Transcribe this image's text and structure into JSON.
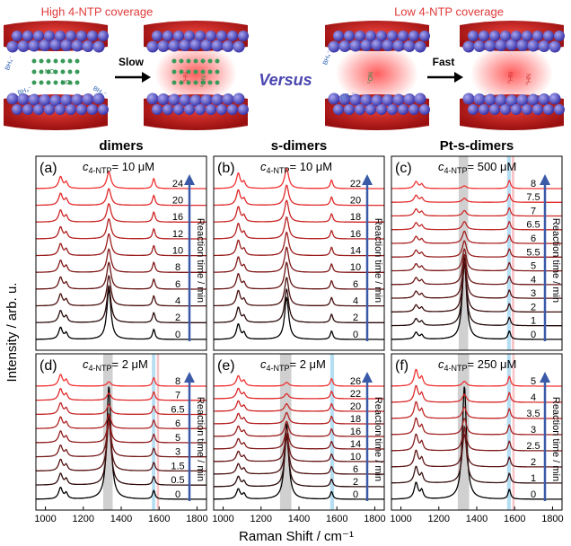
{
  "figure": {
    "high_title": "High 4-NTP coverage",
    "low_title": "Low 4-NTP coverage",
    "slow": "Slow",
    "fast": "Fast",
    "versus": "Versus",
    "molecule_labels": {
      "borohydride": "BH₄⁻",
      "nitro": "NO₂",
      "amine": "NH₂"
    },
    "ylabel": "Intensity / arb. u.",
    "xlabel": "Raman Shift / cm⁻¹",
    "arrow_label": "Reaction time / min"
  },
  "chart_data": [
    {
      "type": "spectra",
      "title": "dimers",
      "panel_label": "(a)",
      "conc_symbol": "c",
      "conc_subscript": "4-NTP",
      "conc_value": "= 10 μM",
      "xlim": [
        950,
        1850
      ],
      "x": [
        1080,
        1110,
        1335,
        1572
      ],
      "peak_widths": [
        12,
        9,
        13,
        8
      ],
      "bands": [],
      "series": [
        {
          "name": "0",
          "color": "#000000",
          "values": [
            0.7,
            0.35,
            3.0,
            0.6
          ]
        },
        {
          "name": "2",
          "color": "#2a0a0a",
          "values": [
            0.7,
            0.35,
            2.2,
            0.6
          ]
        },
        {
          "name": "4",
          "color": "#4a1010",
          "values": [
            0.7,
            0.35,
            1.8,
            0.6
          ]
        },
        {
          "name": "6",
          "color": "#661414",
          "values": [
            0.7,
            0.35,
            1.6,
            0.6
          ]
        },
        {
          "name": "8",
          "color": "#801818",
          "values": [
            0.7,
            0.35,
            1.4,
            0.6
          ]
        },
        {
          "name": "10",
          "color": "#9a1c1c",
          "values": [
            0.7,
            0.35,
            1.3,
            0.6
          ]
        },
        {
          "name": "12",
          "color": "#b42020",
          "values": [
            0.7,
            0.35,
            1.2,
            0.6
          ]
        },
        {
          "name": "16",
          "color": "#cc2424",
          "values": [
            0.7,
            0.35,
            1.1,
            0.6
          ]
        },
        {
          "name": "20",
          "color": "#e02828",
          "values": [
            0.7,
            0.35,
            1.0,
            0.6
          ]
        },
        {
          "name": "24",
          "color": "#f03030",
          "values": [
            0.7,
            0.35,
            1.0,
            0.6
          ]
        }
      ]
    },
    {
      "type": "spectra",
      "title": "s-dimers",
      "panel_label": "(b)",
      "conc_symbol": "c",
      "conc_subscript": "4-NTP",
      "conc_value": "= 10 μM",
      "xlim": [
        950,
        1850
      ],
      "x": [
        1080,
        1110,
        1335,
        1572
      ],
      "peak_widths": [
        12,
        9,
        13,
        8
      ],
      "bands": [],
      "series": [
        {
          "name": "0",
          "color": "#000000",
          "values": [
            0.9,
            0.35,
            2.5,
            0.5
          ]
        },
        {
          "name": "2",
          "color": "#2a0a0a",
          "values": [
            0.9,
            0.35,
            2.0,
            0.5
          ]
        },
        {
          "name": "4",
          "color": "#4a1010",
          "values": [
            0.9,
            0.35,
            1.7,
            0.5
          ]
        },
        {
          "name": "6",
          "color": "#661414",
          "values": [
            0.9,
            0.35,
            1.6,
            0.5
          ]
        },
        {
          "name": "10",
          "color": "#801818",
          "values": [
            0.9,
            0.35,
            1.5,
            0.5
          ]
        },
        {
          "name": "14",
          "color": "#9a1c1c",
          "values": [
            0.9,
            0.35,
            1.4,
            0.5
          ]
        },
        {
          "name": "16",
          "color": "#b42020",
          "values": [
            0.9,
            0.35,
            1.3,
            0.5
          ]
        },
        {
          "name": "18",
          "color": "#cc2424",
          "values": [
            0.9,
            0.35,
            1.3,
            0.5
          ]
        },
        {
          "name": "20",
          "color": "#e02828",
          "values": [
            0.9,
            0.35,
            1.2,
            0.5
          ]
        },
        {
          "name": "22",
          "color": "#f03030",
          "values": [
            0.9,
            0.35,
            1.2,
            0.5
          ]
        }
      ]
    },
    {
      "type": "spectra",
      "title": "Pt-s-dimers",
      "panel_label": "(c)",
      "conc_symbol": "c",
      "conc_subscript": "4-NTP",
      "conc_value": "= 500 μM",
      "xlim": [
        950,
        1850
      ],
      "x": [
        1080,
        1110,
        1335,
        1572
      ],
      "peak_widths": [
        12,
        9,
        13,
        8
      ],
      "bands": [
        {
          "xlim": [
            1305,
            1355
          ],
          "color": "#c8c8c8"
        },
        {
          "xlim": [
            1560,
            1580
          ],
          "color": "#a9d8f0"
        },
        {
          "xlim": [
            1585,
            1598
          ],
          "color": "#f6b8bc"
        }
      ],
      "series": [
        {
          "name": "0",
          "color": "#000000",
          "values": [
            0.5,
            0.3,
            6.0,
            0.6
          ]
        },
        {
          "name": "1",
          "color": "#220808",
          "values": [
            0.5,
            0.3,
            4.5,
            0.6
          ]
        },
        {
          "name": "2",
          "color": "#3c0e0e",
          "values": [
            0.5,
            0.3,
            3.5,
            0.6
          ]
        },
        {
          "name": "3",
          "color": "#541212",
          "values": [
            0.5,
            0.3,
            2.8,
            0.6
          ]
        },
        {
          "name": "4",
          "color": "#6a1616",
          "values": [
            0.5,
            0.3,
            2.2,
            0.6
          ]
        },
        {
          "name": "5",
          "color": "#801a1a",
          "values": [
            0.5,
            0.3,
            1.6,
            0.6
          ]
        },
        {
          "name": "5.5",
          "color": "#961e1e",
          "values": [
            0.5,
            0.3,
            1.2,
            0.6
          ]
        },
        {
          "name": "6",
          "color": "#aa2222",
          "values": [
            0.5,
            0.3,
            0.9,
            0.6
          ]
        },
        {
          "name": "6.5",
          "color": "#be2626",
          "values": [
            0.5,
            0.3,
            0.6,
            0.6
          ]
        },
        {
          "name": "7",
          "color": "#d02a2a",
          "values": [
            0.5,
            0.3,
            0.4,
            0.6
          ]
        },
        {
          "name": "7.5",
          "color": "#e22e2e",
          "values": [
            0.5,
            0.3,
            0.3,
            0.6
          ]
        },
        {
          "name": "8",
          "color": "#f23434",
          "values": [
            0.5,
            0.3,
            0.2,
            0.6
          ]
        }
      ]
    },
    {
      "type": "spectra",
      "panel_label": "(d)",
      "conc_symbol": "c",
      "conc_subscript": "4-NTP",
      "conc_value": "= 2 μM",
      "xlim": [
        950,
        1850
      ],
      "xticks": [
        1000,
        1200,
        1400,
        1600,
        1800
      ],
      "x": [
        1080,
        1110,
        1335,
        1572
      ],
      "peak_widths": [
        12,
        9,
        13,
        8
      ],
      "bands": [
        {
          "xlim": [
            1305,
            1355
          ],
          "color": "#c8c8c8"
        },
        {
          "xlim": [
            1562,
            1580
          ],
          "color": "#a9d8f0"
        },
        {
          "xlim": [
            1588,
            1600
          ],
          "color": "#f6b8bc"
        }
      ],
      "series": [
        {
          "name": "0",
          "color": "#000000",
          "values": [
            0.8,
            0.4,
            8.0,
            0.6
          ]
        },
        {
          "name": "0.5",
          "color": "#300c0c",
          "values": [
            0.8,
            0.4,
            5.0,
            0.6
          ]
        },
        {
          "name": "1.5",
          "color": "#541212",
          "values": [
            0.8,
            0.4,
            3.5,
            0.6
          ]
        },
        {
          "name": "3",
          "color": "#741818",
          "values": [
            0.8,
            0.4,
            2.5,
            0.6
          ]
        },
        {
          "name": "5",
          "color": "#921c1c",
          "values": [
            0.8,
            0.4,
            1.5,
            0.6
          ]
        },
        {
          "name": "6",
          "color": "#ae2222",
          "values": [
            0.8,
            0.4,
            1.0,
            0.6
          ]
        },
        {
          "name": "6.5",
          "color": "#c82626",
          "values": [
            0.8,
            0.4,
            0.7,
            0.6
          ]
        },
        {
          "name": "7",
          "color": "#e02a2a",
          "values": [
            0.8,
            0.4,
            0.5,
            0.6
          ]
        },
        {
          "name": "8",
          "color": "#f23232",
          "values": [
            0.8,
            0.4,
            0.3,
            0.6
          ]
        }
      ]
    },
    {
      "type": "spectra",
      "panel_label": "(e)",
      "conc_symbol": "c",
      "conc_subscript": "4-NTP",
      "conc_value": "= 2 μM",
      "xlim": [
        950,
        1850
      ],
      "xticks": [
        1000,
        1200,
        1400,
        1600,
        1800
      ],
      "x": [
        1080,
        1110,
        1335,
        1572
      ],
      "peak_widths": [
        12,
        9,
        13,
        8
      ],
      "bands": [
        {
          "xlim": [
            1300,
            1360
          ],
          "color": "#c8c8c8"
        },
        {
          "xlim": [
            1565,
            1585
          ],
          "color": "#a9d8f0"
        }
      ],
      "series": [
        {
          "name": "0",
          "color": "#000000",
          "values": [
            0.8,
            0.4,
            6.0,
            0.6
          ]
        },
        {
          "name": "2",
          "color": "#2a0a0a",
          "values": [
            0.8,
            0.4,
            4.0,
            0.6
          ]
        },
        {
          "name": "6",
          "color": "#4a1010",
          "values": [
            0.8,
            0.4,
            3.0,
            0.6
          ]
        },
        {
          "name": "10",
          "color": "#661414",
          "values": [
            0.8,
            0.4,
            2.2,
            0.6
          ]
        },
        {
          "name": "14",
          "color": "#801818",
          "values": [
            0.8,
            0.4,
            1.6,
            0.6
          ]
        },
        {
          "name": "16",
          "color": "#9a1c1c",
          "values": [
            0.8,
            0.4,
            1.2,
            0.6
          ]
        },
        {
          "name": "18",
          "color": "#b42020",
          "values": [
            0.8,
            0.4,
            0.9,
            0.6
          ]
        },
        {
          "name": "20",
          "color": "#cc2424",
          "values": [
            0.8,
            0.4,
            0.6,
            0.6
          ]
        },
        {
          "name": "22",
          "color": "#e02828",
          "values": [
            0.8,
            0.4,
            0.4,
            0.6
          ]
        },
        {
          "name": "26",
          "color": "#f03030",
          "values": [
            0.8,
            0.4,
            0.3,
            0.6
          ]
        }
      ]
    },
    {
      "type": "spectra",
      "panel_label": "(f)",
      "conc_symbol": "c",
      "conc_subscript": "4-NTP",
      "conc_value": "= 250 μM",
      "xlim": [
        950,
        1850
      ],
      "xticks": [
        1000,
        1200,
        1400,
        1600,
        1800
      ],
      "x": [
        1080,
        1110,
        1335,
        1572
      ],
      "peak_widths": [
        12,
        9,
        13,
        8
      ],
      "bands": [
        {
          "xlim": [
            1300,
            1360
          ],
          "color": "#c8c8c8"
        },
        {
          "xlim": [
            1560,
            1580
          ],
          "color": "#a9d8f0"
        },
        {
          "xlim": [
            1588,
            1600
          ],
          "color": "#f6b8bc"
        }
      ],
      "series": [
        {
          "name": "0",
          "color": "#000000",
          "values": [
            1.0,
            0.5,
            7.0,
            0.6
          ]
        },
        {
          "name": "1",
          "color": "#361010",
          "values": [
            1.0,
            0.5,
            3.5,
            0.6
          ]
        },
        {
          "name": "2",
          "color": "#5e1616",
          "values": [
            1.0,
            0.5,
            2.0,
            0.6
          ]
        },
        {
          "name": "2.5",
          "color": "#821c1c",
          "values": [
            1.0,
            0.5,
            1.4,
            0.6
          ]
        },
        {
          "name": "3",
          "color": "#a22222",
          "values": [
            1.0,
            0.5,
            1.0,
            0.6
          ]
        },
        {
          "name": "3.5",
          "color": "#c02626",
          "values": [
            1.0,
            0.5,
            0.7,
            0.6
          ]
        },
        {
          "name": "4",
          "color": "#da2a2a",
          "values": [
            1.0,
            0.5,
            0.5,
            0.6
          ]
        },
        {
          "name": "5",
          "color": "#f03232",
          "values": [
            1.0,
            0.5,
            0.3,
            0.6
          ]
        }
      ]
    }
  ]
}
